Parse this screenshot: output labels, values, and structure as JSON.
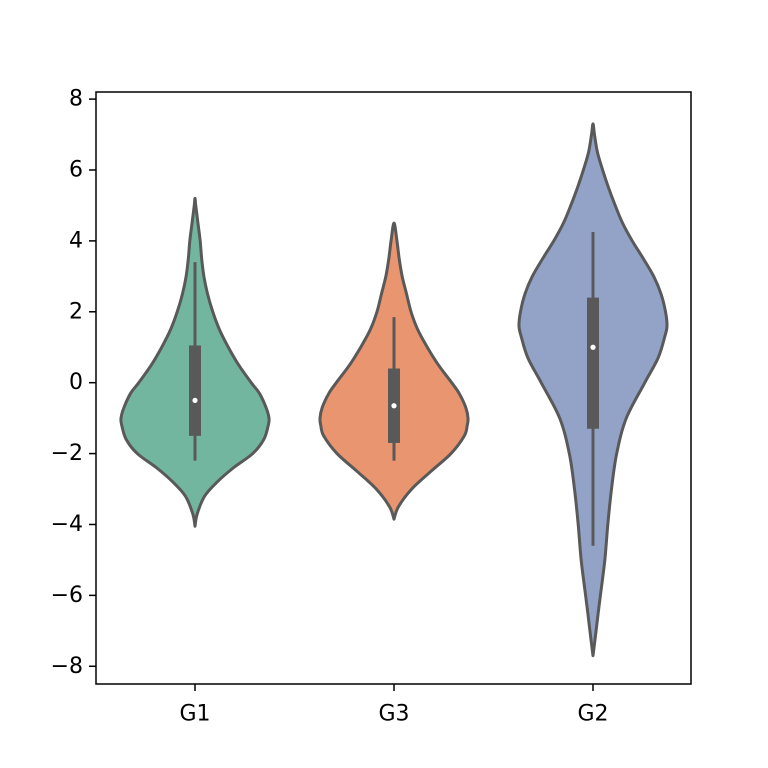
{
  "chart_data": {
    "type": "violin",
    "title": "",
    "xlabel": "",
    "ylabel": "",
    "ylim": [
      -8.5,
      8.2
    ],
    "yticks": [
      -8,
      -6,
      -4,
      -2,
      0,
      2,
      4,
      6,
      8
    ],
    "ytick_labels": [
      "−8",
      "−6",
      "−4",
      "−2",
      "0",
      "2",
      "4",
      "6",
      "8"
    ],
    "categories": [
      "G1",
      "G3",
      "G2"
    ],
    "grid": false,
    "legend": "none",
    "outline_color": "#595959",
    "series": [
      {
        "category": "G1",
        "color": "#73b6a0",
        "min": -2.2,
        "q1": -1.5,
        "median": -0.5,
        "q3": 1.05,
        "max": 3.4,
        "kde_min": -4.05,
        "kde_max": 5.2,
        "profile": [
          [
            -4.05,
            0.0
          ],
          [
            -3.7,
            0.03
          ],
          [
            -3.2,
            0.13
          ],
          [
            -2.8,
            0.3
          ],
          [
            -2.4,
            0.52
          ],
          [
            -2.0,
            0.78
          ],
          [
            -1.6,
            0.93
          ],
          [
            -1.2,
            0.99
          ],
          [
            -1.0,
            1.0
          ],
          [
            -0.7,
            0.96
          ],
          [
            -0.3,
            0.87
          ],
          [
            0.0,
            0.76
          ],
          [
            0.5,
            0.59
          ],
          [
            1.0,
            0.45
          ],
          [
            1.5,
            0.33
          ],
          [
            2.0,
            0.24
          ],
          [
            2.5,
            0.17
          ],
          [
            3.0,
            0.12
          ],
          [
            3.5,
            0.09
          ],
          [
            4.0,
            0.07
          ],
          [
            4.5,
            0.04
          ],
          [
            5.0,
            0.01
          ],
          [
            5.2,
            0.0
          ]
        ]
      },
      {
        "category": "G3",
        "color": "#e9956f",
        "min": -2.2,
        "q1": -1.7,
        "median": -0.65,
        "q3": 0.4,
        "max": 1.85,
        "kde_min": -3.85,
        "kde_max": 4.5,
        "profile": [
          [
            -3.85,
            0.0
          ],
          [
            -3.5,
            0.06
          ],
          [
            -3.0,
            0.24
          ],
          [
            -2.5,
            0.5
          ],
          [
            -2.0,
            0.77
          ],
          [
            -1.5,
            0.95
          ],
          [
            -1.2,
            0.99
          ],
          [
            -1.0,
            1.0
          ],
          [
            -0.7,
            0.97
          ],
          [
            -0.3,
            0.88
          ],
          [
            0.0,
            0.78
          ],
          [
            0.5,
            0.6
          ],
          [
            1.0,
            0.45
          ],
          [
            1.5,
            0.32
          ],
          [
            2.0,
            0.23
          ],
          [
            2.5,
            0.17
          ],
          [
            3.0,
            0.11
          ],
          [
            3.5,
            0.07
          ],
          [
            4.0,
            0.04
          ],
          [
            4.5,
            0.0
          ]
        ]
      },
      {
        "category": "G2",
        "color": "#93a3c8",
        "min": -4.6,
        "q1": -1.3,
        "median": 1.0,
        "q3": 2.4,
        "max": 4.25,
        "kde_min": -7.7,
        "kde_max": 7.3,
        "profile": [
          [
            -7.7,
            0.0
          ],
          [
            -7.2,
            0.03
          ],
          [
            -6.5,
            0.07
          ],
          [
            -6.0,
            0.1
          ],
          [
            -5.0,
            0.16
          ],
          [
            -4.0,
            0.2
          ],
          [
            -3.0,
            0.25
          ],
          [
            -2.0,
            0.32
          ],
          [
            -1.0,
            0.45
          ],
          [
            0.0,
            0.7
          ],
          [
            0.7,
            0.88
          ],
          [
            1.3,
            0.97
          ],
          [
            1.6,
            1.0
          ],
          [
            2.0,
            0.98
          ],
          [
            2.5,
            0.92
          ],
          [
            3.0,
            0.82
          ],
          [
            3.5,
            0.68
          ],
          [
            4.0,
            0.53
          ],
          [
            4.5,
            0.4
          ],
          [
            5.0,
            0.3
          ],
          [
            5.5,
            0.21
          ],
          [
            6.0,
            0.13
          ],
          [
            6.5,
            0.06
          ],
          [
            7.0,
            0.02
          ],
          [
            7.3,
            0.0
          ]
        ]
      }
    ]
  }
}
